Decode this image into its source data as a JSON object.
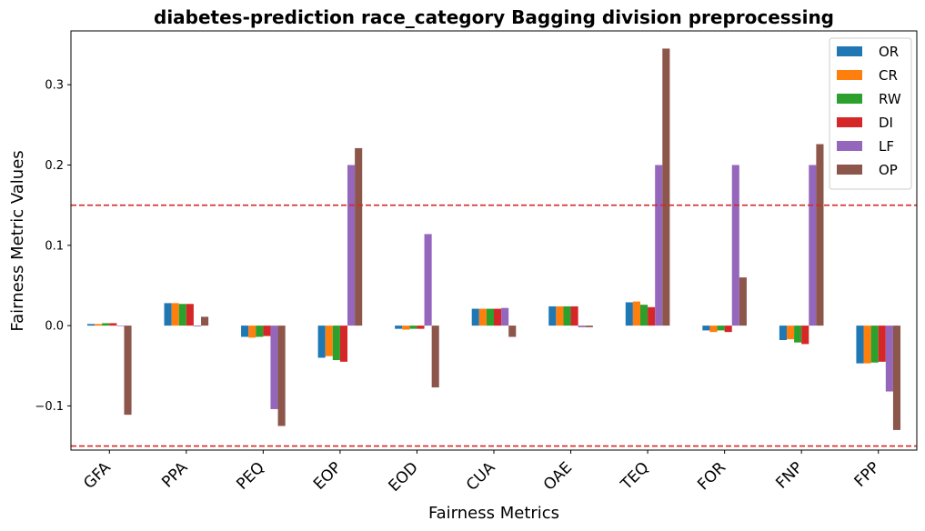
{
  "chart_data": {
    "type": "bar",
    "title": "diabetes-prediction race_category Bagging division preprocessing",
    "xlabel": "Fairness Metrics",
    "ylabel": "Fairness Metric Values",
    "ylim": [
      -0.155,
      0.367
    ],
    "yticks": [
      -0.1,
      0.0,
      0.1,
      0.2,
      0.3
    ],
    "ytick_labels": [
      "−0.1",
      "0.0",
      "0.1",
      "0.2",
      "0.3"
    ],
    "categories": [
      "GFA",
      "PPA",
      "PEQ",
      "EOP",
      "EOD",
      "CUA",
      "OAE",
      "TEQ",
      "FOR",
      "FNP",
      "FPP"
    ],
    "thresholds": [
      0.15,
      -0.15
    ],
    "threshold_color": "#d62728",
    "legend_position": "top-right",
    "series": [
      {
        "name": "OR",
        "color": "#1f77b4",
        "values": [
          0.002,
          0.028,
          -0.014,
          -0.04,
          -0.004,
          0.021,
          0.024,
          0.029,
          -0.006,
          -0.018,
          -0.047
        ]
      },
      {
        "name": "CR",
        "color": "#ff7f0e",
        "values": [
          0.002,
          0.028,
          -0.015,
          -0.038,
          -0.005,
          0.021,
          0.024,
          0.03,
          -0.008,
          -0.017,
          -0.047
        ]
      },
      {
        "name": "RW",
        "color": "#2ca02c",
        "values": [
          0.003,
          0.027,
          -0.014,
          -0.043,
          -0.004,
          0.021,
          0.024,
          0.026,
          -0.006,
          -0.021,
          -0.046
        ]
      },
      {
        "name": "DI",
        "color": "#d62728",
        "values": [
          0.003,
          0.027,
          -0.013,
          -0.045,
          -0.004,
          0.021,
          0.024,
          0.023,
          -0.008,
          -0.023,
          -0.045
        ]
      },
      {
        "name": "LF",
        "color": "#9467bd",
        "values": [
          0.0,
          -0.001,
          -0.104,
          0.2,
          0.114,
          0.022,
          -0.002,
          0.2,
          0.2,
          0.2,
          -0.082
        ]
      },
      {
        "name": "OP",
        "color": "#8c564b",
        "values": [
          -0.111,
          0.011,
          -0.125,
          0.221,
          -0.077,
          -0.014,
          -0.002,
          0.345,
          0.06,
          0.226,
          -0.13
        ]
      }
    ]
  }
}
